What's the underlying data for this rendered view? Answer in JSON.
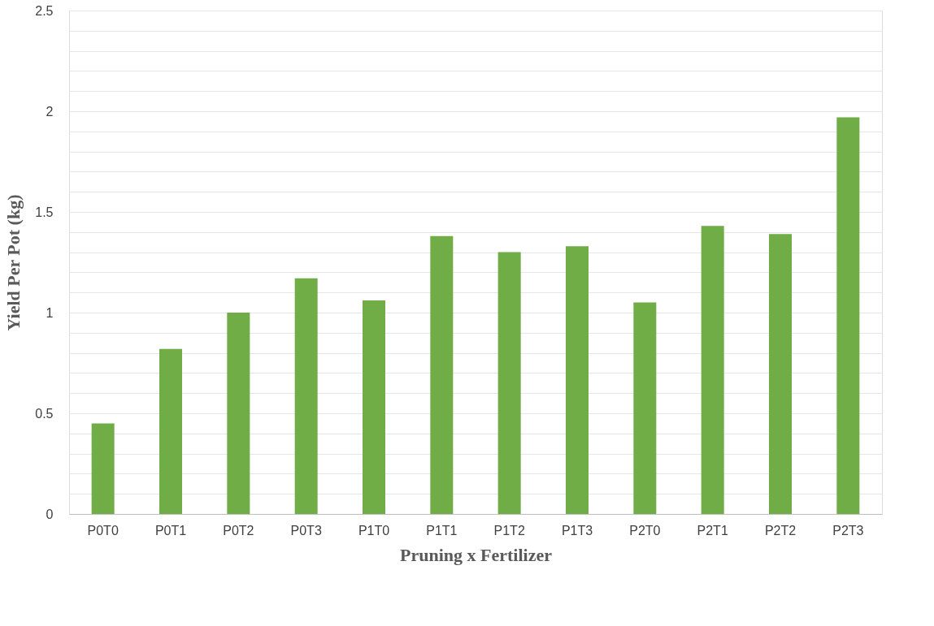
{
  "chart_data": {
    "type": "bar",
    "xlabel": "Pruning x Fertilizer",
    "ylabel": "Yield Per Pot (kg)",
    "categories": [
      "P0T0",
      "P0T1",
      "P0T2",
      "P0T3",
      "P1T0",
      "P1T1",
      "P1T2",
      "P1T3",
      "P2T0",
      "P2T1",
      "P2T2",
      "P2T3"
    ],
    "values": [
      0.45,
      0.82,
      1.0,
      1.17,
      1.06,
      1.38,
      1.3,
      1.33,
      1.05,
      1.43,
      1.39,
      1.97
    ],
    "color": "#70ad47",
    "ylim": [
      0,
      2.5
    ],
    "yticks": [
      0,
      {
        "value": 0.1,
        "label": null
      },
      {
        "value": 0.2,
        "label": null
      },
      {
        "value": 0.3,
        "label": null
      },
      {
        "value": 0.4,
        "label": null
      },
      0.5,
      {
        "value": 0.6,
        "label": null
      },
      {
        "value": 0.7,
        "label": null
      },
      {
        "value": 0.8,
        "label": null
      },
      {
        "value": 0.9,
        "label": null
      },
      1,
      {
        "value": 1.1,
        "label": null
      },
      {
        "value": 1.2,
        "label": null
      },
      {
        "value": 1.3,
        "label": null
      },
      {
        "value": 1.4,
        "label": null
      },
      1.5,
      {
        "value": 1.6,
        "label": null
      },
      {
        "value": 1.7,
        "label": null
      },
      {
        "value": 1.8,
        "label": null
      },
      {
        "value": 1.9,
        "label": null
      },
      2,
      {
        "value": 2.1,
        "label": null
      },
      {
        "value": 2.2,
        "label": null
      },
      {
        "value": 2.3,
        "label": null
      },
      {
        "value": 2.4,
        "label": null
      },
      2.5
    ],
    "grid": true
  }
}
